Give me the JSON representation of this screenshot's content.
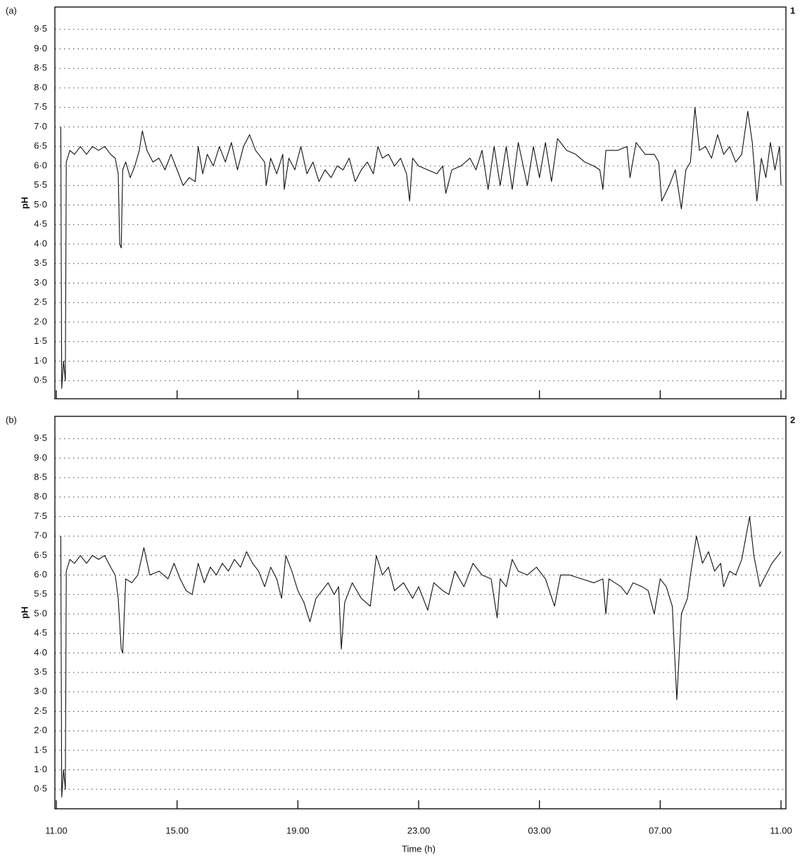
{
  "chart_data": [
    {
      "type": "line",
      "panel_label": "(a)",
      "panel_number": "1",
      "ylabel": "pH",
      "color": "#111111",
      "grid": true,
      "show_xtick_labels": false,
      "xlim": [
        0,
        24
      ],
      "ylim": [
        0,
        10
      ],
      "xticks": [
        {
          "value": 0,
          "label": "11.00"
        },
        {
          "value": 4,
          "label": "15.00"
        },
        {
          "value": 8,
          "label": "19.00"
        },
        {
          "value": 12,
          "label": "23.00"
        },
        {
          "value": 16,
          "label": "03.00"
        },
        {
          "value": 20,
          "label": "07.00"
        },
        {
          "value": 24,
          "label": "11.00"
        }
      ],
      "yticks": [
        {
          "value": 0.5,
          "label": "0·5"
        },
        {
          "value": 1,
          "label": "1·0"
        },
        {
          "value": 1.5,
          "label": "1·5"
        },
        {
          "value": 2,
          "label": "2·0"
        },
        {
          "value": 2.5,
          "label": "2·5"
        },
        {
          "value": 3,
          "label": "3·0"
        },
        {
          "value": 3.5,
          "label": "3·5"
        },
        {
          "value": 4,
          "label": "4·0"
        },
        {
          "value": 4.5,
          "label": "4·5"
        },
        {
          "value": 5,
          "label": "5·0"
        },
        {
          "value": 5.5,
          "label": "5·5"
        },
        {
          "value": 6,
          "label": "6·0"
        },
        {
          "value": 6.5,
          "label": "6·5"
        },
        {
          "value": 7,
          "label": "7·0"
        },
        {
          "value": 7.5,
          "label": "7·5"
        },
        {
          "value": 8,
          "label": "8·0"
        },
        {
          "value": 8.5,
          "label": "8·5"
        },
        {
          "value": 9,
          "label": "9·0"
        },
        {
          "value": 9.5,
          "label": "9·5"
        }
      ],
      "x": [
        0.15,
        0.18,
        0.24,
        0.3,
        0.33,
        0.45,
        0.6,
        0.8,
        1.0,
        1.2,
        1.4,
        1.6,
        1.8,
        1.95,
        2.05,
        2.1,
        2.15,
        2.2,
        2.3,
        2.45,
        2.6,
        2.75,
        2.85,
        3.0,
        3.2,
        3.4,
        3.6,
        3.8,
        4.0,
        4.2,
        4.4,
        4.6,
        4.7,
        4.85,
        5.0,
        5.2,
        5.4,
        5.6,
        5.8,
        6.0,
        6.2,
        6.4,
        6.6,
        6.9,
        6.95,
        7.1,
        7.3,
        7.5,
        7.55,
        7.7,
        7.9,
        8.1,
        8.3,
        8.5,
        8.7,
        8.9,
        9.1,
        9.3,
        9.5,
        9.7,
        9.9,
        10.1,
        10.3,
        10.5,
        10.65,
        10.8,
        11.0,
        11.2,
        11.4,
        11.6,
        11.7,
        11.8,
        12.0,
        12.3,
        12.6,
        12.8,
        12.9,
        13.1,
        13.4,
        13.7,
        13.9,
        14.1,
        14.3,
        14.5,
        14.7,
        14.9,
        15.1,
        15.3,
        15.6,
        15.8,
        16.0,
        16.2,
        16.4,
        16.6,
        16.9,
        17.2,
        17.5,
        17.8,
        18.0,
        18.1,
        18.2,
        18.6,
        18.9,
        19.0,
        19.2,
        19.5,
        19.8,
        19.95,
        20.05,
        20.3,
        20.5,
        20.7,
        20.85,
        21.0,
        21.15,
        21.3,
        21.5,
        21.7,
        21.9,
        22.1,
        22.3,
        22.5,
        22.7,
        22.9,
        23.05,
        23.2,
        23.35,
        23.5,
        23.65,
        23.8,
        23.95,
        24.0
      ],
      "values": [
        7.0,
        0.3,
        1.0,
        0.5,
        6.1,
        6.4,
        6.3,
        6.5,
        6.3,
        6.5,
        6.4,
        6.5,
        6.3,
        6.2,
        5.8,
        4.0,
        3.9,
        5.9,
        6.1,
        5.7,
        6.0,
        6.4,
        6.9,
        6.4,
        6.1,
        6.2,
        5.9,
        6.3,
        5.9,
        5.5,
        5.7,
        5.6,
        6.5,
        5.8,
        6.3,
        6.0,
        6.5,
        6.1,
        6.6,
        5.9,
        6.5,
        6.8,
        6.4,
        6.1,
        5.5,
        6.2,
        5.8,
        6.3,
        5.4,
        6.2,
        5.9,
        6.5,
        5.8,
        6.1,
        5.6,
        5.9,
        5.7,
        6.0,
        5.9,
        6.2,
        5.6,
        5.9,
        6.1,
        5.8,
        6.5,
        6.2,
        6.3,
        6.0,
        6.2,
        5.8,
        5.1,
        6.2,
        6.0,
        5.9,
        5.8,
        6.0,
        5.3,
        5.9,
        6.0,
        6.2,
        5.9,
        6.4,
        5.4,
        6.5,
        5.5,
        6.5,
        5.4,
        6.6,
        5.5,
        6.5,
        5.7,
        6.6,
        5.6,
        6.7,
        6.4,
        6.3,
        6.1,
        6.0,
        5.9,
        5.4,
        6.4,
        6.4,
        6.5,
        5.7,
        6.6,
        6.3,
        6.3,
        6.1,
        5.1,
        5.5,
        5.9,
        4.9,
        5.9,
        6.1,
        7.5,
        6.4,
        6.5,
        6.2,
        6.8,
        6.3,
        6.5,
        6.1,
        6.3,
        7.4,
        6.6,
        5.1,
        6.2,
        5.7,
        6.6,
        5.9,
        6.5,
        5.5
      ]
    },
    {
      "type": "line",
      "panel_label": "(b)",
      "panel_number": "2",
      "ylabel": "pH",
      "xlabel": "Time (h)",
      "color": "#111111",
      "grid": true,
      "show_xtick_labels": true,
      "xlim": [
        0,
        24
      ],
      "ylim": [
        0,
        10
      ],
      "xticks": [
        {
          "value": 0,
          "label": "11.00"
        },
        {
          "value": 4,
          "label": "15.00"
        },
        {
          "value": 8,
          "label": "19.00"
        },
        {
          "value": 12,
          "label": "23.00"
        },
        {
          "value": 16,
          "label": "03.00"
        },
        {
          "value": 20,
          "label": "07.00"
        },
        {
          "value": 24,
          "label": "11.00"
        }
      ],
      "yticks": [
        {
          "value": 0.5,
          "label": "0·5"
        },
        {
          "value": 1,
          "label": "1·0"
        },
        {
          "value": 1.5,
          "label": "1·5"
        },
        {
          "value": 2,
          "label": "2·0"
        },
        {
          "value": 2.5,
          "label": "2·5"
        },
        {
          "value": 3,
          "label": "3·0"
        },
        {
          "value": 3.5,
          "label": "3·5"
        },
        {
          "value": 4,
          "label": "4·0"
        },
        {
          "value": 4.5,
          "label": "4·5"
        },
        {
          "value": 5,
          "label": "5·0"
        },
        {
          "value": 5.5,
          "label": "5·5"
        },
        {
          "value": 6,
          "label": "6·0"
        },
        {
          "value": 6.5,
          "label": "6·5"
        },
        {
          "value": 7,
          "label": "7·0"
        },
        {
          "value": 7.5,
          "label": "7·5"
        },
        {
          "value": 8,
          "label": "8·0"
        },
        {
          "value": 8.5,
          "label": "8·5"
        },
        {
          "value": 9,
          "label": "9·0"
        },
        {
          "value": 9.5,
          "label": "9·5"
        }
      ],
      "x": [
        0.15,
        0.18,
        0.24,
        0.3,
        0.33,
        0.45,
        0.6,
        0.8,
        1.0,
        1.2,
        1.4,
        1.6,
        1.8,
        1.95,
        2.05,
        2.15,
        2.2,
        2.3,
        2.5,
        2.7,
        2.9,
        3.1,
        3.4,
        3.7,
        3.9,
        4.1,
        4.3,
        4.5,
        4.7,
        4.9,
        5.1,
        5.3,
        5.5,
        5.7,
        5.9,
        6.1,
        6.3,
        6.5,
        6.7,
        6.9,
        7.1,
        7.3,
        7.46,
        7.6,
        7.8,
        8.0,
        8.2,
        8.4,
        8.6,
        8.8,
        9.0,
        9.2,
        9.35,
        9.44,
        9.55,
        9.8,
        10.1,
        10.4,
        10.6,
        10.8,
        11.0,
        11.2,
        11.5,
        11.8,
        12.0,
        12.3,
        12.5,
        12.8,
        13.0,
        13.2,
        13.5,
        13.8,
        14.1,
        14.4,
        14.6,
        14.7,
        14.9,
        15.1,
        15.3,
        15.6,
        15.9,
        16.2,
        16.5,
        16.7,
        17.0,
        17.4,
        17.8,
        18.1,
        18.2,
        18.3,
        18.7,
        18.9,
        19.1,
        19.4,
        19.6,
        19.8,
        20.0,
        20.2,
        20.4,
        20.55,
        20.7,
        20.9,
        21.0,
        21.2,
        21.4,
        21.6,
        21.8,
        22.0,
        22.1,
        22.3,
        22.5,
        22.7,
        22.96,
        23.1,
        23.3,
        23.5,
        23.7,
        23.9,
        24.0
      ],
      "values": [
        7.0,
        0.3,
        1.0,
        0.5,
        6.1,
        6.4,
        6.3,
        6.5,
        6.3,
        6.5,
        6.4,
        6.5,
        6.2,
        6.0,
        5.4,
        4.1,
        4.0,
        5.9,
        5.8,
        6.0,
        6.7,
        6.0,
        6.1,
        5.9,
        6.3,
        5.9,
        5.6,
        5.5,
        6.3,
        5.8,
        6.2,
        6.0,
        6.3,
        6.1,
        6.4,
        6.2,
        6.6,
        6.3,
        6.1,
        5.7,
        6.2,
        5.9,
        5.4,
        6.5,
        6.1,
        5.6,
        5.3,
        4.8,
        5.4,
        5.6,
        5.8,
        5.5,
        5.7,
        4.1,
        5.3,
        5.8,
        5.4,
        5.2,
        6.5,
        6.0,
        6.2,
        5.6,
        5.8,
        5.4,
        5.7,
        5.1,
        5.8,
        5.6,
        5.5,
        6.1,
        5.7,
        6.3,
        6.0,
        5.9,
        4.9,
        5.9,
        5.7,
        6.4,
        6.1,
        6.0,
        6.2,
        5.9,
        5.2,
        6.0,
        6.0,
        5.9,
        5.8,
        5.9,
        5.0,
        5.9,
        5.7,
        5.5,
        5.8,
        5.7,
        5.6,
        5.0,
        5.9,
        5.7,
        5.2,
        2.8,
        5.0,
        5.4,
        6.0,
        7.0,
        6.3,
        6.6,
        6.1,
        6.3,
        5.7,
        6.1,
        6.0,
        6.4,
        7.5,
        6.5,
        5.7,
        6.0,
        6.3,
        6.5,
        6.6
      ]
    }
  ]
}
